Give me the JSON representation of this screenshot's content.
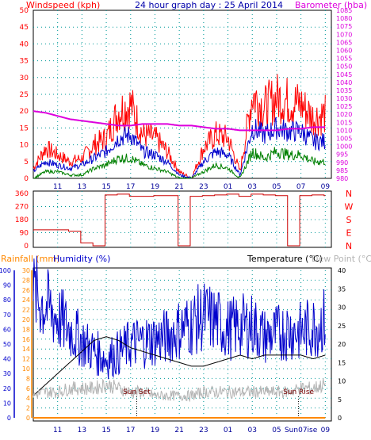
{
  "header": {
    "windspeed_label": "Windspeed (kph)",
    "title": "24 hour graph day : 25 April 2014",
    "barometer_label": "Barometer (hba)"
  },
  "colors": {
    "wind_gust": "#ff0000",
    "wind_avg": "#0000cc",
    "wind_low": "#008000",
    "barometer": "#dd00dd",
    "direction": "#cc0000",
    "humidity": "#0000cc",
    "temperature": "#000000",
    "dewpoint": "#b4b4b4",
    "rainfall": "#ff8800",
    "grid": "#009999",
    "axis_blue": "#000099"
  },
  "chart_data": [
    {
      "type": "line",
      "title": "24 hour graph day : 25 April 2014",
      "ylabel": "Windspeed (kph)",
      "y2label": "Barometer (hba)",
      "ylim": [
        0,
        50
      ],
      "y2lim": [
        980,
        1085
      ],
      "yticks": [
        0,
        5,
        10,
        15,
        20,
        25,
        30,
        35,
        40,
        45,
        50
      ],
      "y2ticks": [
        980,
        985,
        990,
        995,
        1000,
        1005,
        1010,
        1015,
        1020,
        1025,
        1030,
        1035,
        1040,
        1045,
        1050,
        1055,
        1060,
        1065,
        1070,
        1075,
        1080,
        1085
      ],
      "x_tick_labels": [
        "11",
        "13",
        "15",
        "17",
        "19",
        "21",
        "23",
        "01",
        "03",
        "05",
        "07",
        "09"
      ],
      "x": [
        9,
        10,
        11,
        12,
        13,
        14,
        15,
        16,
        17,
        18,
        19,
        20,
        21,
        22,
        23,
        24,
        25,
        26,
        27,
        28,
        29,
        30,
        31,
        32,
        33
      ],
      "series": [
        {
          "role": "gust",
          "values": [
            3,
            9,
            7,
            5,
            6,
            10,
            12,
            20,
            22,
            13,
            12,
            8,
            2,
            0,
            9,
            13,
            12,
            2,
            25,
            21,
            24,
            23,
            22,
            18,
            19
          ]
        },
        {
          "role": "average",
          "values": [
            2,
            5,
            4,
            3,
            4,
            6,
            8,
            12,
            13,
            8,
            7,
            5,
            1,
            0,
            5,
            8,
            7,
            1,
            15,
            13,
            15,
            14,
            14,
            11,
            11
          ]
        },
        {
          "role": "low",
          "values": [
            0,
            2,
            2,
            1,
            1,
            3,
            4,
            6,
            6,
            4,
            3,
            2,
            0,
            0,
            2,
            4,
            3,
            0,
            8,
            6,
            8,
            7,
            7,
            5,
            5
          ]
        },
        {
          "role": "barometer",
          "values": [
            1022,
            1021,
            1019,
            1017,
            1016,
            1015,
            1014,
            1013,
            1013,
            1014,
            1014,
            1014,
            1013,
            1013,
            1012,
            1011,
            1011,
            1010,
            1010,
            1010,
            1010,
            1011,
            1011,
            1012,
            1012
          ]
        }
      ]
    },
    {
      "type": "line",
      "ylabel": "Wind direction",
      "ylim": [
        0,
        360
      ],
      "yticks": [
        0,
        90,
        180,
        270,
        360
      ],
      "compass_labels": [
        "N",
        "W",
        "S",
        "E",
        "N"
      ],
      "x": [
        9,
        10,
        11,
        12,
        13,
        14,
        15,
        16,
        17,
        18,
        19,
        20,
        21,
        22,
        23,
        24,
        25,
        26,
        27,
        28,
        29,
        30,
        31,
        32,
        33
      ],
      "values": [
        110,
        110,
        110,
        100,
        20,
        0,
        350,
        355,
        340,
        340,
        345,
        345,
        0,
        340,
        345,
        350,
        355,
        340,
        355,
        350,
        345,
        0,
        345,
        350,
        345
      ]
    },
    {
      "type": "line",
      "rain_label": "Rainfall (mm)",
      "humidity_label": "Humidity (%)",
      "temperature_label": "Temperature (°C)",
      "dewpoint_label": "Dew Point (°C)",
      "sunset_label": "Sun Set",
      "sunrise_label": "Sun Rise",
      "rain_ylim": [
        0,
        30
      ],
      "rain_yticks": [
        0,
        2,
        4,
        6,
        8,
        10,
        12,
        14,
        16,
        18,
        20,
        22,
        24,
        26,
        28,
        30
      ],
      "humidity_ylim": [
        0,
        100
      ],
      "humidity_yticks": [
        0,
        10,
        20,
        30,
        40,
        50,
        60,
        70,
        80,
        90,
        100
      ],
      "temp_ylim": [
        0,
        40
      ],
      "temp_yticks": [
        0,
        5,
        10,
        15,
        20,
        25,
        30,
        35,
        40
      ],
      "x_tick_labels": [
        "11",
        "13",
        "15",
        "17",
        "19",
        "21",
        "23",
        "01",
        "03",
        "05",
        "Sun07ise",
        "09"
      ],
      "sunset_hour": 17.5,
      "sunrise_hour": 30.8,
      "x": [
        9,
        10,
        11,
        12,
        13,
        14,
        15,
        16,
        17,
        18,
        19,
        20,
        21,
        22,
        23,
        24,
        25,
        26,
        27,
        28,
        29,
        30,
        31,
        32,
        33
      ],
      "series": [
        {
          "role": "humidity",
          "values": [
            84,
            76,
            68,
            60,
            52,
            45,
            40,
            44,
            50,
            52,
            53,
            55,
            60,
            64,
            69,
            66,
            60,
            62,
            63,
            55,
            57,
            60,
            58,
            62,
            66
          ]
        },
        {
          "role": "temperature",
          "values": [
            6,
            9,
            12,
            15,
            18,
            21,
            22,
            21,
            19,
            18,
            17,
            16,
            15,
            14,
            14,
            15,
            16,
            17,
            16,
            17,
            17,
            17,
            17,
            16,
            17
          ]
        },
        {
          "role": "dewpoint",
          "values": [
            6,
            7,
            7,
            8,
            8,
            8,
            9,
            8,
            7,
            7,
            6,
            6,
            6,
            6,
            7,
            7,
            7,
            7,
            7,
            7,
            7,
            7,
            8,
            8,
            9
          ]
        },
        {
          "role": "rainfall",
          "values": [
            0,
            0,
            0,
            0,
            0,
            0,
            0,
            0,
            0,
            0,
            0,
            0,
            0,
            0,
            0,
            0,
            0,
            0,
            0,
            0,
            0,
            0,
            0,
            0,
            0
          ]
        }
      ]
    }
  ]
}
